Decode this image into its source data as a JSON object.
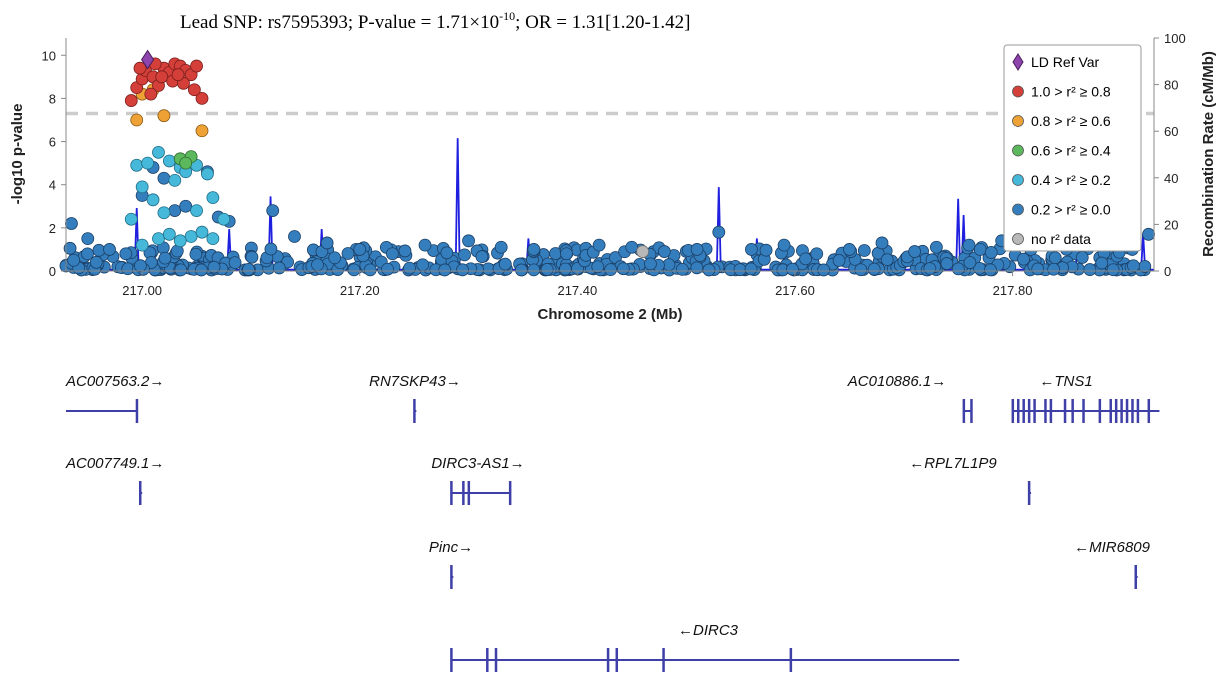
{
  "chart_data": {
    "type": "scatter",
    "title_parts": [
      "Lead SNP: rs7595393; P-value = 1.71×10",
      "-10",
      "; OR = 1.31[1.20-1.42]"
    ],
    "xlabel": "Chromosome 2 (Mb)",
    "ylabel": "-log10 p-value",
    "y2label": "Recombination Rate (cM/Mb)",
    "xlim": [
      216.93,
      217.93
    ],
    "ylim": [
      0,
      10.8
    ],
    "y2lim": [
      0,
      100
    ],
    "x_ticks": [
      217.0,
      217.2,
      217.4,
      217.6,
      217.8
    ],
    "x_tick_labels": [
      "217.00",
      "217.20",
      "217.40",
      "217.60",
      "217.80"
    ],
    "y_ticks": [
      0,
      2,
      4,
      6,
      8,
      10
    ],
    "y2_ticks": [
      0,
      20,
      40,
      60,
      80,
      100
    ],
    "significance_line": 7.3,
    "legend_position": "top-right",
    "legend": [
      {
        "label": "LD Ref Var",
        "color": "#8e44ad",
        "shape": "diamond"
      },
      {
        "label": "1.0 > r² ≥ 0.8",
        "color": "#d43f3a",
        "shape": "circle"
      },
      {
        "label": "0.8 > r² ≥ 0.6",
        "color": "#eea236",
        "shape": "circle"
      },
      {
        "label": "0.6 > r² ≥ 0.4",
        "color": "#5cb85c",
        "shape": "circle"
      },
      {
        "label": "0.4 > r² ≥ 0.2",
        "color": "#46b8da",
        "shape": "circle"
      },
      {
        "label": "0.2 > r² ≥ 0.0",
        "color": "#357ebd",
        "shape": "circle"
      },
      {
        "label": "no r² data",
        "color": "#b8b8b8",
        "shape": "circle"
      }
    ],
    "lead_variant": {
      "x": 217.005,
      "y": 9.8
    },
    "points_high_ld": [
      [
        216.99,
        7.9
      ],
      [
        216.995,
        8.5
      ],
      [
        217.0,
        8.9
      ],
      [
        217.003,
        9.3
      ],
      [
        217.01,
        9.0
      ],
      [
        217.015,
        8.6
      ],
      [
        217.02,
        9.4
      ],
      [
        217.025,
        9.2
      ],
      [
        217.03,
        9.6
      ],
      [
        217.035,
        9.5
      ],
      [
        217.04,
        9.3
      ],
      [
        217.045,
        9.1
      ],
      [
        217.05,
        9.5
      ],
      [
        217.055,
        8.0
      ],
      [
        217.012,
        9.6
      ],
      [
        217.008,
        8.2
      ],
      [
        217.018,
        9.0
      ],
      [
        217.028,
        8.8
      ],
      [
        217.038,
        8.7
      ],
      [
        217.048,
        8.4
      ],
      [
        216.998,
        9.4
      ],
      [
        217.033,
        9.1
      ]
    ],
    "points_mid_ld": [
      [
        216.995,
        7.0
      ],
      [
        217.0,
        8.2
      ],
      [
        217.02,
        7.2
      ],
      [
        217.055,
        6.5
      ],
      [
        217.01,
        8.4
      ]
    ],
    "points_moderate_ld": [
      [
        217.035,
        5.2
      ],
      [
        217.045,
        5.3
      ],
      [
        217.04,
        5.0
      ]
    ],
    "points_low_ld": [
      [
        216.995,
        4.9
      ],
      [
        217.005,
        5.0
      ],
      [
        217.015,
        5.5
      ],
      [
        217.025,
        5.1
      ],
      [
        217.035,
        4.8
      ],
      [
        217.05,
        4.9
      ],
      [
        217.06,
        4.5
      ],
      [
        216.99,
        2.4
      ],
      [
        217.0,
        3.9
      ],
      [
        217.01,
        3.3
      ],
      [
        217.02,
        2.7
      ],
      [
        217.03,
        4.2
      ],
      [
        217.04,
        4.6
      ],
      [
        217.05,
        2.8
      ],
      [
        217.065,
        3.4
      ],
      [
        217.075,
        2.4
      ],
      [
        217.0,
        1.2
      ],
      [
        217.015,
        1.5
      ],
      [
        217.025,
        1.7
      ],
      [
        217.045,
        1.6
      ],
      [
        217.055,
        1.8
      ],
      [
        217.065,
        1.5
      ],
      [
        217.035,
        1.4
      ]
    ],
    "points_very_low_ld": [
      [
        216.935,
        2.2
      ],
      [
        216.95,
        1.5
      ],
      [
        216.97,
        1.0
      ],
      [
        216.985,
        0.8
      ],
      [
        217.0,
        3.5
      ],
      [
        217.01,
        4.8
      ],
      [
        217.02,
        4.3
      ],
      [
        217.03,
        2.8
      ],
      [
        217.04,
        3.0
      ],
      [
        217.06,
        4.6
      ],
      [
        217.07,
        2.5
      ],
      [
        217.08,
        2.3
      ],
      [
        217.12,
        2.8
      ],
      [
        217.14,
        1.6
      ],
      [
        217.17,
        1.3
      ],
      [
        217.2,
        1.0
      ],
      [
        217.23,
        0.8
      ],
      [
        217.26,
        1.2
      ],
      [
        217.3,
        1.4
      ],
      [
        217.33,
        1.1
      ],
      [
        217.36,
        1.0
      ],
      [
        217.39,
        0.8
      ],
      [
        217.42,
        1.2
      ],
      [
        217.45,
        1.1
      ],
      [
        217.48,
        0.9
      ],
      [
        217.51,
        1.0
      ],
      [
        217.53,
        1.8
      ],
      [
        217.56,
        1.0
      ],
      [
        217.59,
        1.2
      ],
      [
        217.62,
        0.8
      ],
      [
        217.65,
        1.0
      ],
      [
        217.68,
        1.3
      ],
      [
        217.71,
        0.9
      ],
      [
        217.73,
        1.1
      ],
      [
        217.76,
        1.2
      ],
      [
        217.79,
        1.4
      ],
      [
        217.82,
        1.3
      ],
      [
        217.85,
        1.3
      ],
      [
        217.88,
        1.2
      ],
      [
        217.91,
        1.0
      ],
      [
        217.925,
        1.7
      ]
    ],
    "points_no_data": [
      [
        217.46,
        0.9
      ]
    ],
    "recombination_spikes": [
      [
        216.995,
        27
      ],
      [
        217.08,
        18
      ],
      [
        217.118,
        32
      ],
      [
        217.165,
        18
      ],
      [
        217.29,
        57
      ],
      [
        217.355,
        14
      ],
      [
        217.53,
        36
      ],
      [
        217.565,
        14
      ],
      [
        217.75,
        31
      ],
      [
        217.755,
        24
      ],
      [
        217.86,
        22
      ],
      [
        217.92,
        16
      ]
    ]
  },
  "genes": [
    {
      "name": "AC007563.2",
      "strand": "+",
      "start": 216.93,
      "end": 216.995,
      "row": 0,
      "exons": [
        216.995
      ]
    },
    {
      "name": "RN7SKP43",
      "strand": "+",
      "start": 217.25,
      "end": 217.252,
      "row": 0,
      "exons": [
        217.25
      ]
    },
    {
      "name": "AC010886.1",
      "strand": "+",
      "start": 217.755,
      "end": 217.762,
      "row": 0,
      "exons": [
        217.755,
        217.762
      ]
    },
    {
      "name": "TNS1",
      "strand": "-",
      "start": 217.8,
      "end": 217.935,
      "row": 0,
      "exons": [
        217.8,
        217.805,
        217.81,
        217.815,
        217.82,
        217.83,
        217.835,
        217.848,
        217.855,
        217.865,
        217.88,
        217.89,
        217.895,
        217.9,
        217.905,
        217.91,
        217.915,
        217.925
      ]
    },
    {
      "name": "AC007749.1",
      "strand": "+",
      "start": 216.998,
      "end": 217.0,
      "row": 1,
      "exons": [
        216.998
      ]
    },
    {
      "name": "DIRC3-AS1",
      "strand": "+",
      "start": 217.284,
      "end": 217.338,
      "row": 1,
      "exons": [
        217.284,
        217.295,
        217.3,
        217.338
      ]
    },
    {
      "name": "RPL7L1P9",
      "strand": "-",
      "start": 217.815,
      "end": 217.817,
      "row": 1,
      "exons": [
        217.815
      ]
    },
    {
      "name": "Pinc",
      "strand": "+",
      "start": 217.284,
      "end": 217.286,
      "row": 2,
      "exons": [
        217.284
      ]
    },
    {
      "name": "MIR6809",
      "strand": "-",
      "start": 217.913,
      "end": 217.915,
      "row": 2,
      "exons": [
        217.913
      ]
    },
    {
      "name": "DIRC3",
      "strand": "-",
      "start": 217.284,
      "end": 217.751,
      "row": 3,
      "exons": [
        217.284,
        217.317,
        217.325,
        217.428,
        217.436,
        217.479,
        217.596
      ]
    }
  ]
}
